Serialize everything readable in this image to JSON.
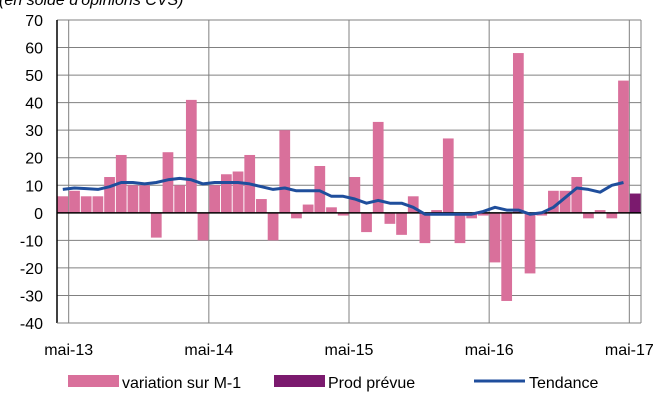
{
  "colors": {
    "variation": "#d9709b",
    "prod": "#7b1a6e",
    "tendance": "#1f4e9c",
    "grid": "#808080",
    "axis": "#000000"
  },
  "chart_data": {
    "type": "bar",
    "subtitle": "(en solde d'opinions CVS)",
    "ylim": [
      -40,
      70
    ],
    "y_ticks": [
      "70",
      "60",
      "50",
      "40",
      "30",
      "20",
      "10",
      "0",
      "-10",
      "-20",
      "-30",
      "-40"
    ],
    "x_tick_labels": [
      "mai-13",
      "mai-14",
      "mai-15",
      "mai-16",
      "mai-17"
    ],
    "grid": true,
    "legend_position": "bottom",
    "months": [
      "avr-13",
      "mai-13",
      "juin-13",
      "juil-13",
      "août-13",
      "sept-13",
      "oct-13",
      "nov-13",
      "déc-13",
      "janv-14",
      "févr-14",
      "mars-14",
      "avr-14",
      "mai-14",
      "juin-14",
      "juil-14",
      "août-14",
      "sept-14",
      "oct-14",
      "nov-14",
      "déc-14",
      "janv-15",
      "févr-15",
      "mars-15",
      "avr-15",
      "mai-15",
      "juin-15",
      "juil-15",
      "août-15",
      "sept-15",
      "oct-15",
      "nov-15",
      "déc-15",
      "janv-16",
      "févr-16",
      "mars-16",
      "avr-16",
      "mai-16",
      "juin-16",
      "juil-16",
      "août-16",
      "sept-16",
      "oct-16",
      "nov-16",
      "déc-16",
      "janv-17",
      "févr-17",
      "mars-17",
      "avr-17",
      "mai-17"
    ],
    "series": [
      {
        "name": "variation sur M-1",
        "kind": "bar",
        "values": [
          6,
          8,
          6,
          6,
          13,
          21,
          10,
          10,
          -9,
          22,
          10,
          41,
          -10,
          10,
          14,
          15,
          21,
          5,
          -10,
          30,
          -2,
          3,
          17,
          2,
          -1,
          13,
          -7,
          33,
          -4,
          -8,
          6,
          -11,
          1,
          27,
          -11,
          -2,
          -1,
          -18,
          -32,
          58,
          -22,
          -1,
          8,
          8,
          13,
          -2,
          1,
          -2,
          48,
          0
        ]
      },
      {
        "name": "Prod prévue",
        "kind": "bar",
        "values": [
          null,
          null,
          null,
          null,
          null,
          null,
          null,
          null,
          null,
          null,
          null,
          null,
          null,
          null,
          null,
          null,
          null,
          null,
          null,
          null,
          null,
          null,
          null,
          null,
          null,
          null,
          null,
          null,
          null,
          null,
          null,
          null,
          null,
          null,
          null,
          null,
          null,
          null,
          null,
          null,
          null,
          null,
          null,
          null,
          null,
          null,
          null,
          null,
          null,
          7
        ]
      },
      {
        "name": "Tendance",
        "kind": "line",
        "values": [
          8.5,
          9,
          8.8,
          8.5,
          9.5,
          11,
          11,
          10.5,
          11,
          12,
          12.5,
          12,
          10.5,
          11,
          11,
          11,
          10.5,
          9.5,
          8.5,
          9,
          8,
          8,
          8,
          6,
          6,
          5,
          3.5,
          4.5,
          3.5,
          3.5,
          2,
          -0.5,
          -0.5,
          -0.5,
          -0.5,
          -0.5,
          0.5,
          2,
          1,
          1,
          -0.5,
          0,
          2,
          5.5,
          9,
          8.5,
          7.5,
          10,
          11,
          null
        ]
      }
    ]
  }
}
